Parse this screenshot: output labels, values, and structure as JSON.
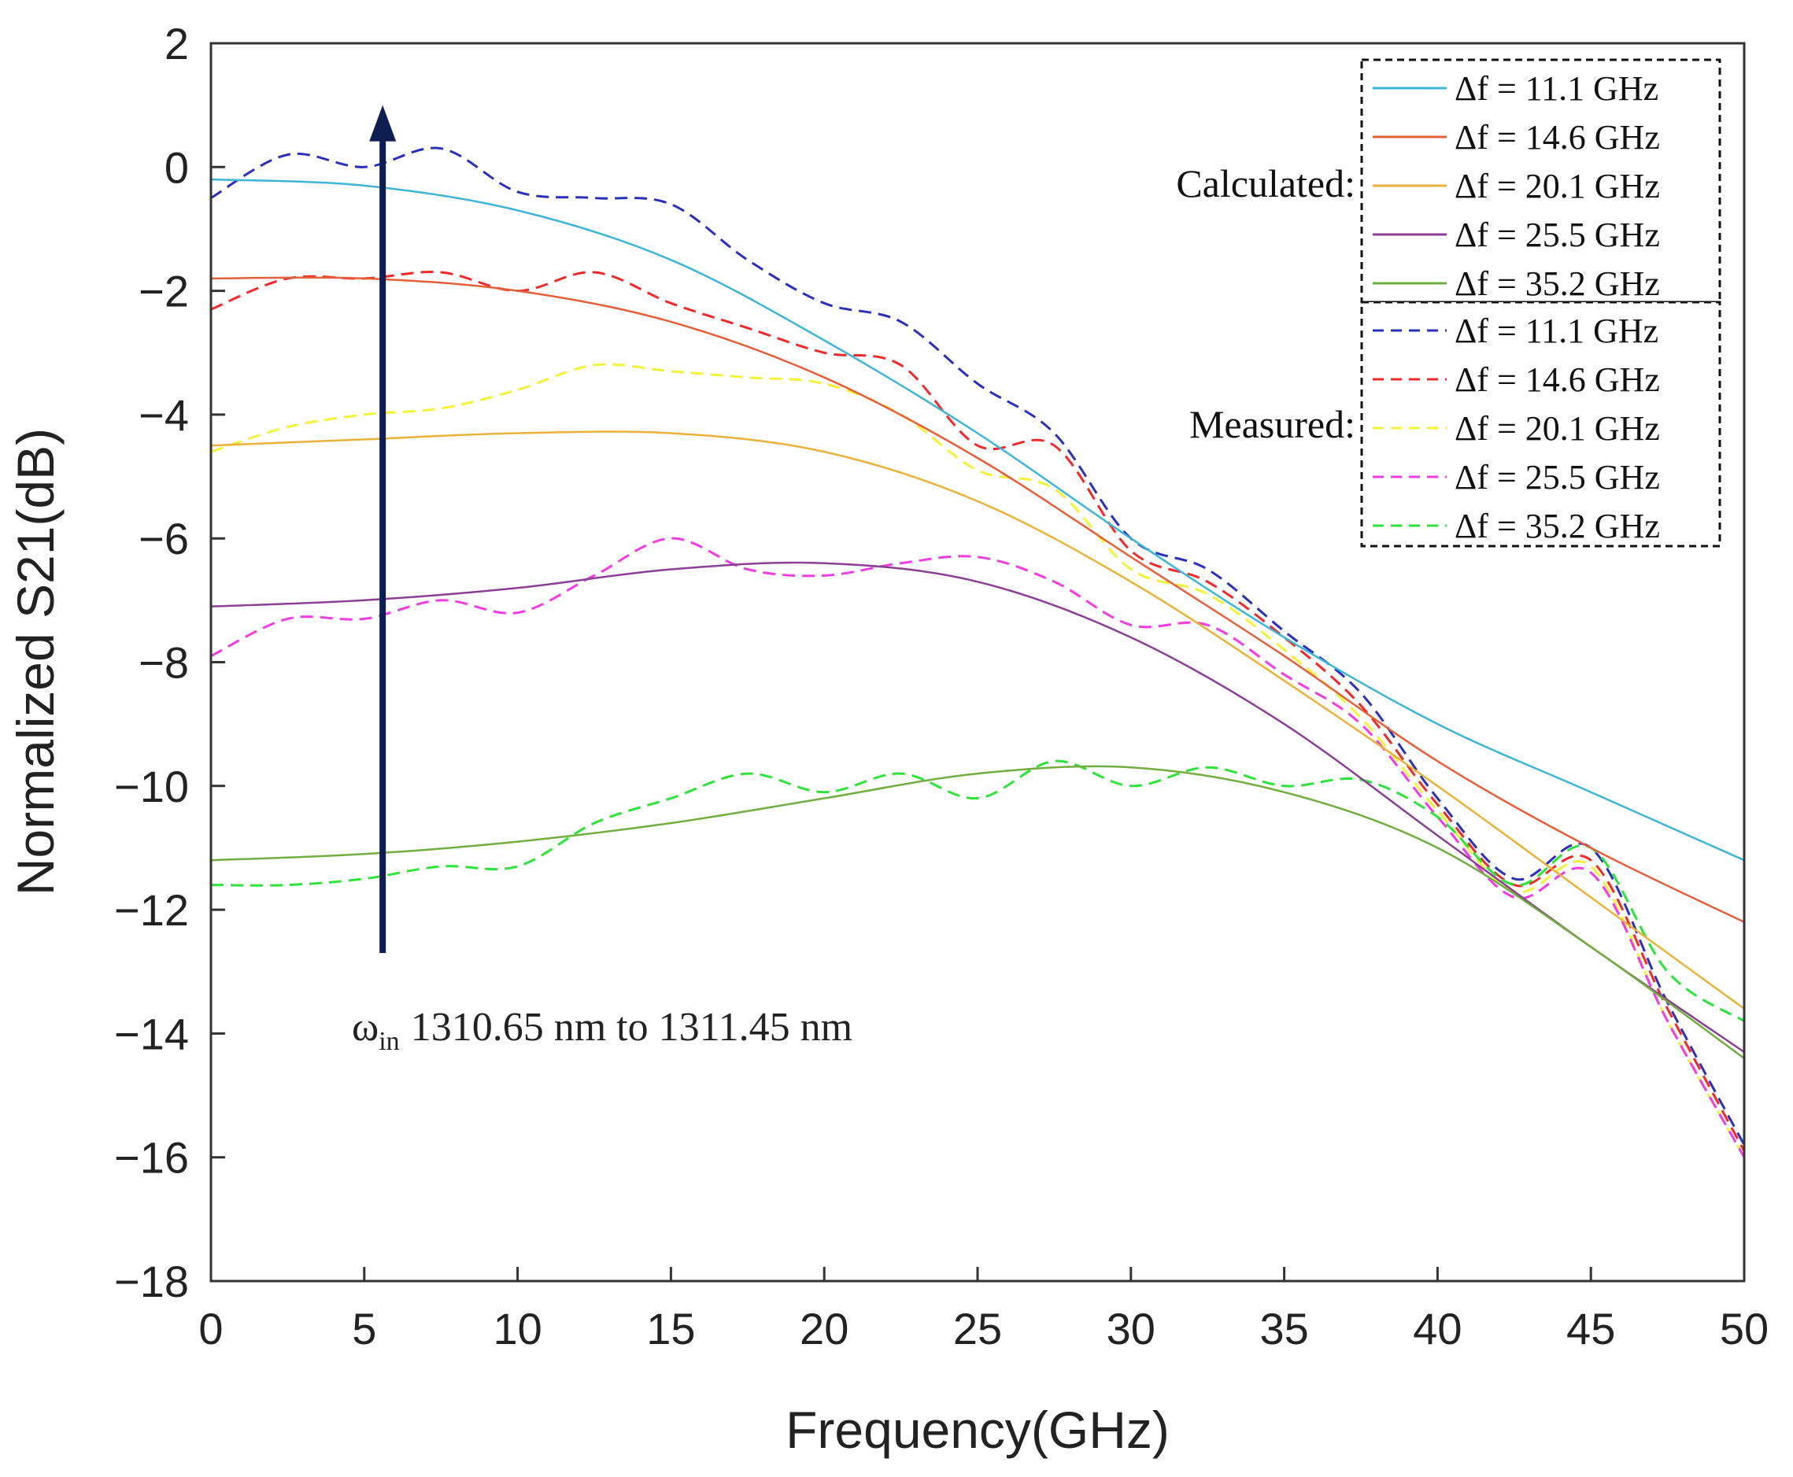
{
  "chart_data": {
    "type": "line",
    "xlabel": "Frequency(GHz)",
    "ylabel": "Normalized S21(dB)",
    "xlim": [
      0,
      50
    ],
    "ylim": [
      -18,
      2
    ],
    "xticks": [
      0,
      5,
      10,
      15,
      20,
      25,
      30,
      35,
      40,
      45,
      50
    ],
    "yticks": [
      2,
      0,
      -2,
      -4,
      -6,
      -8,
      -10,
      -12,
      -14,
      -16,
      -18
    ],
    "ytick_labels": [
      "2",
      "0",
      "−2",
      "−4",
      "−6",
      "−8",
      "−10",
      "−12",
      "−14",
      "−16",
      "−18"
    ],
    "grid": false,
    "legend_position": "top-right",
    "legend_groups": [
      {
        "label": "Calculated:",
        "style": "solid",
        "entries": [
          {
            "name": "Δf = 11.1 GHz",
            "color": "#3fb5d6"
          },
          {
            "name": "Δf = 14.6 GHz",
            "color": "#e4603a"
          },
          {
            "name": "Δf = 20.1 GHz",
            "color": "#e8b23a"
          },
          {
            "name": "Δf = 25.5 GHz",
            "color": "#8a3f95"
          },
          {
            "name": "Δf = 35.2 GHz",
            "color": "#72ad3f"
          }
        ]
      },
      {
        "label": "Measured:",
        "style": "dashed",
        "entries": [
          {
            "name": "Δf = 11.1 GHz",
            "color": "#2b30b8"
          },
          {
            "name": "Δf = 14.6 GHz",
            "color": "#ee2a2a"
          },
          {
            "name": "Δf = 20.1 GHz",
            "color": "#f2f23a"
          },
          {
            "name": "Δf = 25.5 GHz",
            "color": "#f03ce0"
          },
          {
            "name": "Δf = 35.2 GHz",
            "color": "#2ee23a"
          }
        ]
      }
    ],
    "series": [
      {
        "name": "Δf = 11.1 GHz",
        "kind": "calculated",
        "color": "#3fb5d6",
        "x": [
          0,
          5,
          10,
          15,
          20,
          25,
          30,
          35,
          40,
          45,
          50
        ],
        "y": [
          -0.2,
          -0.3,
          -0.7,
          -1.5,
          -2.8,
          -4.3,
          -6.0,
          -7.6,
          -9.0,
          -10.1,
          -11.2
        ]
      },
      {
        "name": "Δf = 14.6 GHz",
        "kind": "calculated",
        "color": "#e4603a",
        "x": [
          0,
          5,
          10,
          15,
          20,
          25,
          30,
          35,
          40,
          45,
          50
        ],
        "y": [
          -1.8,
          -1.8,
          -2.0,
          -2.5,
          -3.4,
          -4.7,
          -6.3,
          -7.9,
          -9.6,
          -11.0,
          -12.2
        ]
      },
      {
        "name": "Δf = 20.1 GHz",
        "kind": "calculated",
        "color": "#e8b23a",
        "x": [
          0,
          5,
          10,
          15,
          20,
          25,
          30,
          35,
          40,
          45,
          50
        ],
        "y": [
          -4.5,
          -4.4,
          -4.3,
          -4.3,
          -4.6,
          -5.4,
          -6.7,
          -8.3,
          -10.0,
          -11.8,
          -13.6
        ]
      },
      {
        "name": "Δf = 25.5 GHz",
        "kind": "calculated",
        "color": "#8a3f95",
        "x": [
          0,
          5,
          10,
          15,
          20,
          25,
          30,
          35,
          40,
          45,
          50
        ],
        "y": [
          -7.1,
          -7.0,
          -6.8,
          -6.5,
          -6.4,
          -6.7,
          -7.6,
          -9.0,
          -10.8,
          -12.6,
          -14.3
        ]
      },
      {
        "name": "Δf = 35.2 GHz",
        "kind": "calculated",
        "color": "#72ad3f",
        "x": [
          0,
          5,
          10,
          15,
          20,
          25,
          30,
          35,
          40,
          45,
          50
        ],
        "y": [
          -11.2,
          -11.1,
          -10.9,
          -10.6,
          -10.2,
          -9.8,
          -9.7,
          -10.1,
          -11.0,
          -12.6,
          -14.4
        ]
      },
      {
        "name": "Δf = 11.1 GHz",
        "kind": "measured",
        "color": "#2b30b8",
        "x": [
          0,
          2.5,
          5,
          7.5,
          10,
          12.5,
          15,
          17.5,
          20,
          22.5,
          25,
          27.5,
          30,
          32.5,
          35,
          37.5,
          40,
          42.5,
          45,
          47.5,
          50
        ],
        "y": [
          -0.5,
          0.2,
          0.0,
          0.3,
          -0.4,
          -0.5,
          -0.6,
          -1.5,
          -2.2,
          -2.5,
          -3.5,
          -4.3,
          -6.0,
          -6.5,
          -7.5,
          -8.5,
          -10.2,
          -11.5,
          -11.0,
          -13.5,
          -15.8
        ]
      },
      {
        "name": "Δf = 14.6 GHz",
        "kind": "measured",
        "color": "#ee2a2a",
        "x": [
          0,
          2.5,
          5,
          7.5,
          10,
          12.5,
          15,
          17.5,
          20,
          22.5,
          25,
          27.5,
          30,
          32.5,
          35,
          37.5,
          40,
          42.5,
          45,
          47.5,
          50
        ],
        "y": [
          -2.3,
          -1.8,
          -1.8,
          -1.7,
          -2.0,
          -1.7,
          -2.2,
          -2.6,
          -3.0,
          -3.2,
          -4.5,
          -4.5,
          -6.2,
          -6.7,
          -7.6,
          -8.7,
          -10.3,
          -11.6,
          -11.2,
          -13.6,
          -15.9
        ]
      },
      {
        "name": "Δf = 20.1 GHz",
        "kind": "measured",
        "color": "#f2f23a",
        "x": [
          0,
          2.5,
          5,
          7.5,
          10,
          12.5,
          15,
          17.5,
          20,
          22.5,
          25,
          27.5,
          30,
          32.5,
          35,
          37.5,
          40,
          42.5,
          45,
          47.5,
          50
        ],
        "y": [
          -4.6,
          -4.2,
          -4.0,
          -3.9,
          -3.6,
          -3.2,
          -3.3,
          -3.4,
          -3.5,
          -4.0,
          -4.9,
          -5.2,
          -6.5,
          -6.9,
          -7.8,
          -8.9,
          -10.4,
          -11.7,
          -11.3,
          -13.8,
          -16.0
        ]
      },
      {
        "name": "Δf = 25.5 GHz",
        "kind": "measured",
        "color": "#f03ce0",
        "x": [
          0,
          2.5,
          5,
          7.5,
          10,
          12.5,
          15,
          17.5,
          20,
          22.5,
          25,
          27.5,
          30,
          32.5,
          35,
          37.5,
          40,
          42.5,
          45,
          47.5,
          50
        ],
        "y": [
          -7.9,
          -7.3,
          -7.3,
          -7.0,
          -7.2,
          -6.6,
          -6.0,
          -6.5,
          -6.6,
          -6.4,
          -6.3,
          -6.7,
          -7.4,
          -7.4,
          -8.2,
          -9.0,
          -10.5,
          -11.8,
          -11.4,
          -13.8,
          -16.0
        ]
      },
      {
        "name": "Δf = 35.2 GHz",
        "kind": "measured",
        "color": "#2ee23a",
        "x": [
          0,
          2.5,
          5,
          7.5,
          10,
          12.5,
          15,
          17.5,
          20,
          22.5,
          25,
          27.5,
          30,
          32.5,
          35,
          37.5,
          40,
          42.5,
          45,
          47.5,
          50
        ],
        "y": [
          -11.6,
          -11.6,
          -11.5,
          -11.3,
          -11.3,
          -10.6,
          -10.2,
          -9.8,
          -10.1,
          -9.8,
          -10.2,
          -9.6,
          -10.0,
          -9.7,
          -10.0,
          -9.9,
          -10.5,
          -11.6,
          -11.0,
          -13.0,
          -13.8
        ]
      }
    ],
    "annotation": {
      "symbol": "ω",
      "subscript": "in",
      "text": "1310.65 nm to 1311.45 nm",
      "arrow": {
        "x": 5.6,
        "y_from": -12.7,
        "y_to": 1.0
      },
      "arrow_color": "#0e1d4f"
    }
  }
}
